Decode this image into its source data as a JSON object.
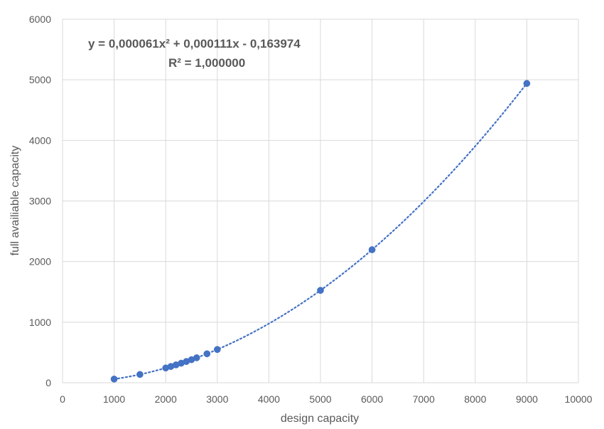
{
  "chart_data": {
    "type": "scatter",
    "title": "",
    "xlabel": "design capacity",
    "ylabel": "full availiable capacity",
    "xlim": [
      0,
      10000
    ],
    "ylim": [
      0,
      6000
    ],
    "xticks": [
      0,
      1000,
      2000,
      3000,
      4000,
      5000,
      6000,
      7000,
      8000,
      9000,
      10000
    ],
    "yticks": [
      0,
      1000,
      2000,
      3000,
      4000,
      5000,
      6000
    ],
    "grid": true,
    "legend": "none",
    "colors": {
      "marker": "#4472c4",
      "trendline": "#4472c4",
      "grid": "#d9d9d9",
      "text": "#595959"
    },
    "series": [
      {
        "x": [
          1000,
          1500,
          2000,
          2100,
          2200,
          2300,
          2400,
          2500,
          2600,
          2800,
          3000,
          5000,
          6000,
          9000
        ],
        "y": [
          61,
          137,
          244,
          269,
          295,
          323,
          351,
          381,
          412,
          478,
          549,
          1525,
          2196,
          4940
        ]
      }
    ],
    "trendline": {
      "type": "polynomial",
      "order": 2,
      "style": "dotted",
      "coefficients": [
        6.1e-05,
        0.000111,
        -0.163974
      ],
      "x_range": [
        1000,
        9000
      ],
      "equation_text": "y = 0,000061x² + 0,000111x - 0,163974",
      "r2_text": "R² = 1,000000"
    }
  }
}
